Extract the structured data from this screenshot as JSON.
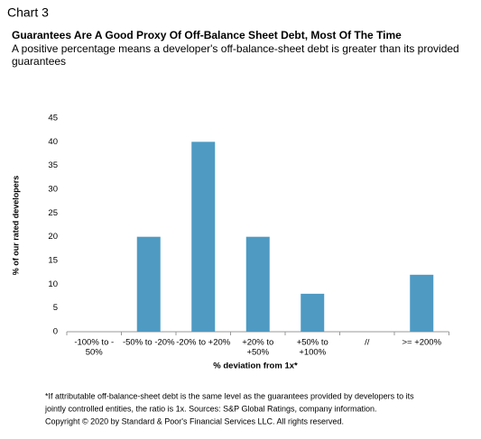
{
  "header": "Chart 3",
  "chart_data": {
    "type": "bar",
    "title": "Guarantees Are A Good Proxy Of Off-Balance Sheet Debt, Most Of The Time",
    "subtitle": [
      "A positive percentage means a developer's off-balance-sheet debt is greater than its provided",
      "guarantees"
    ],
    "x_label": "% deviation from 1x*",
    "y_label": "% of our rated developers",
    "categories": [
      [
        "-100% to -",
        "50%"
      ],
      [
        "-50% to -20%"
      ],
      [
        "-20% to +20%"
      ],
      [
        "+20% to",
        "+50%"
      ],
      [
        "+50% to",
        "+100%"
      ],
      [
        "//"
      ],
      [
        ">= +200%"
      ]
    ],
    "values": [
      0,
      20,
      40,
      20,
      8,
      null,
      12
    ],
    "color": "#4e9ac3",
    "ylim": [
      0,
      45
    ],
    "yticks": [
      0,
      5,
      10,
      15,
      20,
      25,
      30,
      35,
      40,
      45
    ],
    "grid": false
  },
  "notes": [
    "*If attributable off-balance-sheet debt is the same level as the guarantees provided by developers to its",
    "jointly controlled entities, the ratio is 1x. Sources: S&P Global Ratings, company information.",
    "Copyright © 2020 by Standard & Poor's Financial Services LLC. All rights reserved."
  ]
}
